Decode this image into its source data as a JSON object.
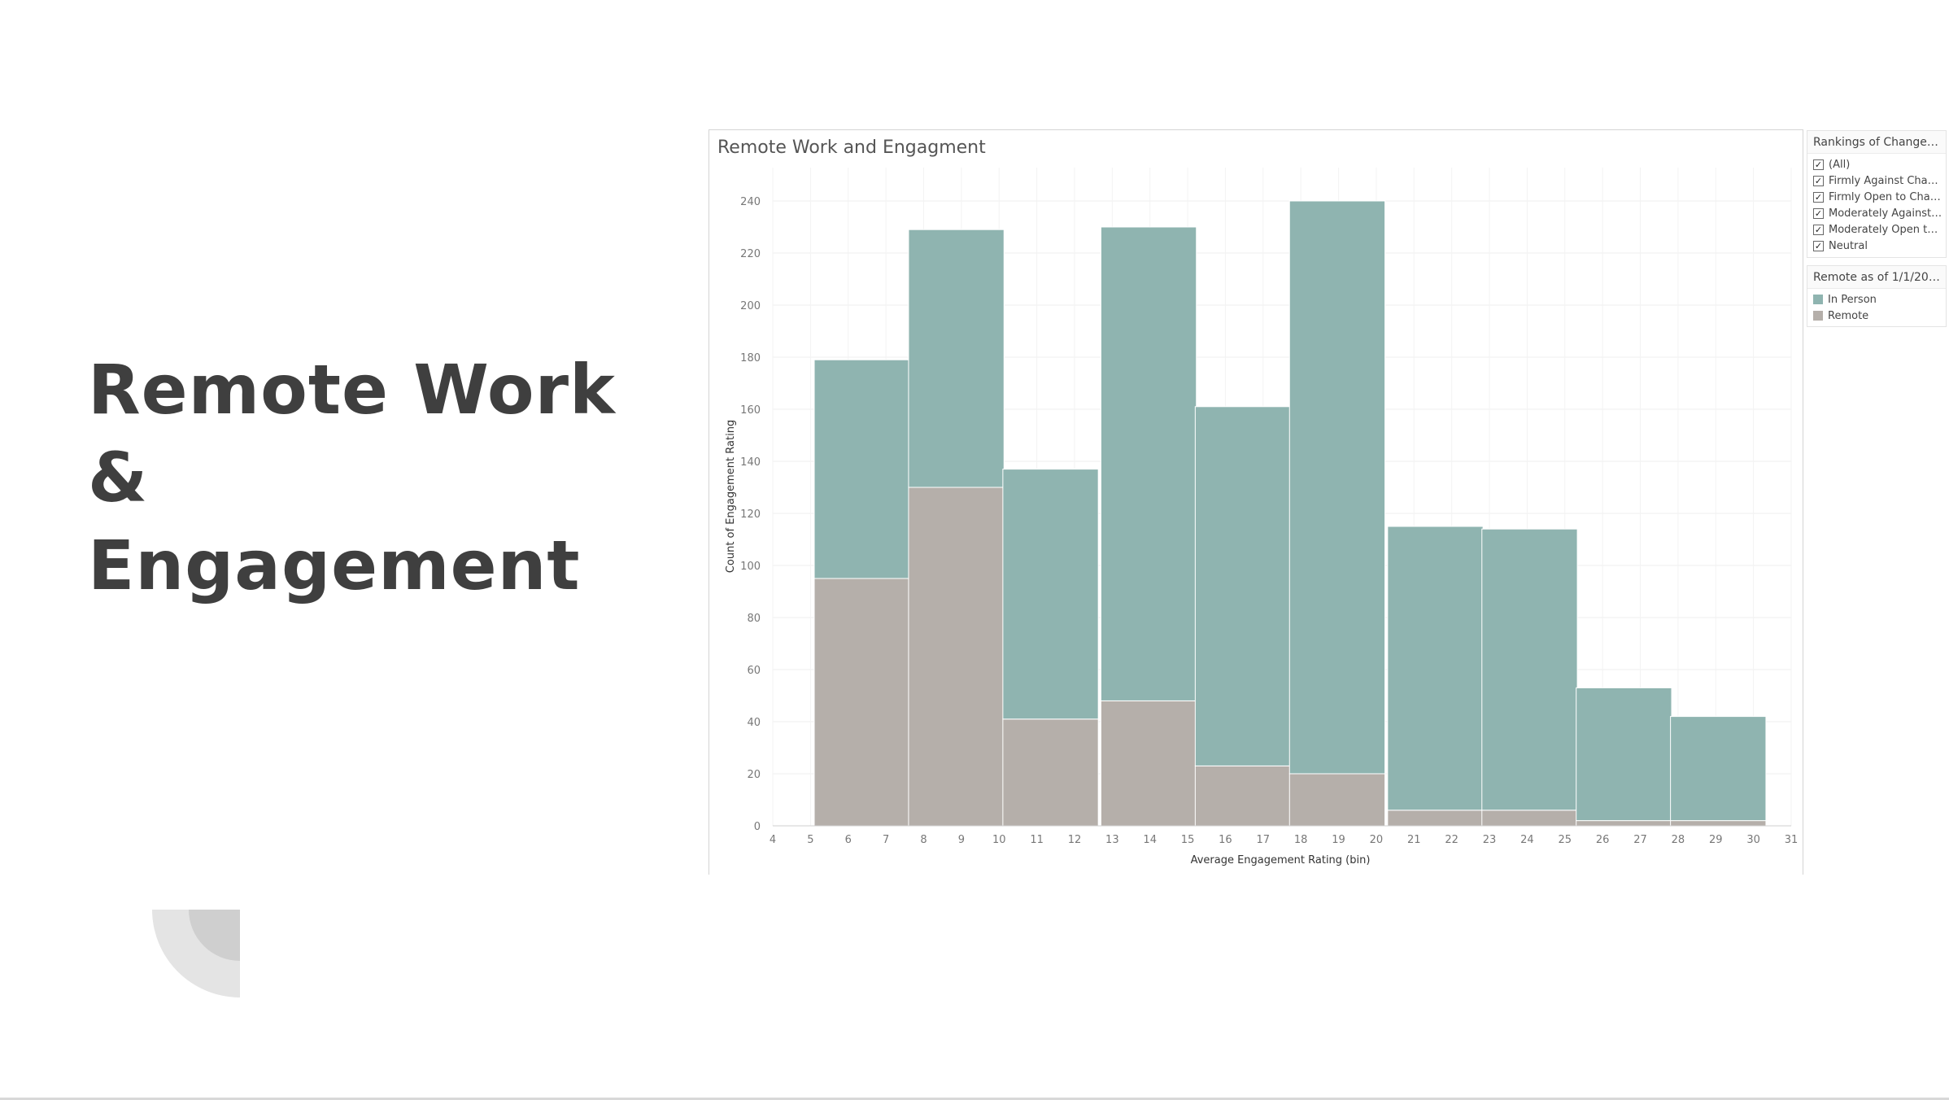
{
  "slide": {
    "title_line1": "Remote Work &",
    "title_line2": "Engagement"
  },
  "viz": {
    "title": "Remote Work and Engagment",
    "filter": {
      "title": "Rankings of Change Sus...",
      "items": [
        {
          "label": "(All)",
          "checked": true
        },
        {
          "label": "Firmly Against Change",
          "checked": true
        },
        {
          "label": "Firmly Open to Chan...",
          "checked": true
        },
        {
          "label": "Moderately Against ...",
          "checked": true
        },
        {
          "label": "Moderately Open to ...",
          "checked": true
        },
        {
          "label": "Neutral",
          "checked": true
        }
      ]
    },
    "legend": {
      "title": "Remote as of 1/1/2022",
      "items": [
        {
          "label": "In Person",
          "color": "#8fb4b0"
        },
        {
          "label": "Remote",
          "color": "#b5afaa"
        }
      ]
    }
  },
  "chart_data": {
    "type": "bar",
    "stacked": true,
    "xlabel": "Average Engagement Rating (bin)",
    "ylabel": "Count of Engagement Rating",
    "xlim": [
      4,
      31
    ],
    "ylim": [
      0,
      252
    ],
    "x_ticks": [
      4,
      5,
      6,
      7,
      8,
      9,
      10,
      11,
      12,
      13,
      14,
      15,
      16,
      17,
      18,
      19,
      20,
      21,
      22,
      23,
      24,
      25,
      26,
      27,
      28,
      29,
      30,
      31
    ],
    "y_ticks": [
      0,
      20,
      40,
      60,
      80,
      100,
      120,
      140,
      160,
      180,
      200,
      220,
      240
    ],
    "bin_starts": [
      5.1,
      7.6,
      10.1,
      12.7,
      15.2,
      17.7,
      20.3,
      22.8,
      25.3,
      27.8
    ],
    "bin_width": 2.53,
    "series": [
      {
        "name": "Remote",
        "color": "#b5afaa",
        "values": [
          95,
          130,
          41,
          48,
          23,
          20,
          6,
          6,
          2,
          2
        ]
      },
      {
        "name": "In Person",
        "color": "#8fb4b0",
        "values": [
          84,
          99,
          96,
          182,
          138,
          220,
          109,
          108,
          51,
          40
        ]
      }
    ],
    "grid": true,
    "legend_position": "right"
  }
}
